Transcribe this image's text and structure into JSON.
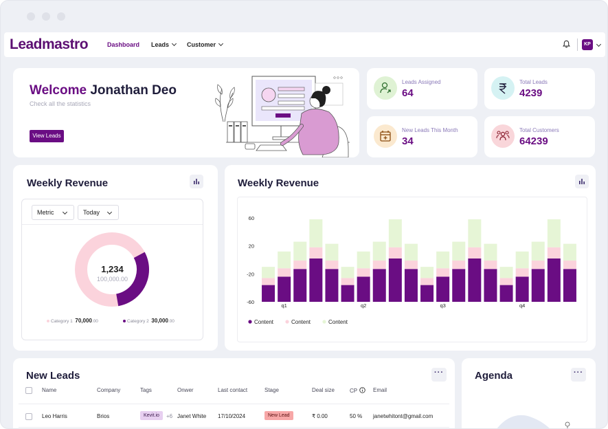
{
  "app": {
    "logo": "Leadmastro"
  },
  "nav": {
    "items": [
      {
        "label": "Dashboard",
        "active": true
      },
      {
        "label": "Leads"
      },
      {
        "label": "Customer"
      }
    ],
    "avatar_initials": "KP"
  },
  "welcome": {
    "title_part1": "Welcome",
    "title_part2": "Jonathan Deo",
    "subtitle": "Check all the statistics",
    "button": "View Leads"
  },
  "stats": [
    {
      "label": "Leads Assigned",
      "value": "64",
      "icon": "user-arrow-icon",
      "color": "#dff2d4"
    },
    {
      "label": "Total Leads",
      "value": "4239",
      "icon": "rupee-icon",
      "color": "#d5f2f3"
    },
    {
      "label": "New Leads This Month",
      "value": "34",
      "icon": "calendar-plus-icon",
      "color": "#fbe9cf"
    },
    {
      "label": "Total Customers",
      "value": "64239",
      "icon": "users-icon",
      "color": "#f9d6da"
    }
  ],
  "donut_card": {
    "title": "Weekly Revenue",
    "metric_select": "Metric",
    "period_select": "Today",
    "center_value": "1,234",
    "center_sub": "100,000.00",
    "legend": [
      {
        "label": "Category 1",
        "value": "70,000",
        "decimals": ".00",
        "color": "#fbd3dc"
      },
      {
        "label": "Category 2",
        "value": "30,000",
        "decimals": ".00",
        "color": "#6a0d83"
      }
    ],
    "colors": {
      "category1": "#fbd3dc",
      "category2": "#6a0d83"
    }
  },
  "chart_data": {
    "type": "bar",
    "stacked": true,
    "title": "Weekly Revenue",
    "y_ticks": [
      "60",
      "20",
      "-20",
      "-60"
    ],
    "ylim": [
      -60,
      60
    ],
    "x_ticks": [
      "q1",
      "q2",
      "q3",
      "q4"
    ],
    "legend_placement": "bottom-left",
    "series": [
      {
        "name": "Content",
        "color": "#6a0d83",
        "values": [
          -36,
          -24,
          -13,
          2,
          -13,
          -36,
          -24,
          -13,
          2,
          -13,
          -36,
          -24,
          -13,
          2,
          -13,
          -36,
          -24,
          -13,
          2,
          -13
        ]
      },
      {
        "name": "Content",
        "color": "#fbd3dc",
        "values": [
          10,
          12,
          12,
          16,
          12,
          10,
          12,
          12,
          16,
          12,
          10,
          12,
          12,
          16,
          12,
          10,
          12,
          12,
          16,
          12
        ]
      },
      {
        "name": "Content",
        "color": "#e6f5d6",
        "values": [
          16,
          24,
          27,
          40,
          24,
          16,
          24,
          27,
          40,
          24,
          16,
          24,
          27,
          40,
          24,
          16,
          24,
          27,
          40,
          24
        ]
      }
    ]
  },
  "leads": {
    "title": "New Leads",
    "columns": [
      "Name",
      "Company",
      "Tags",
      "Onwer",
      "Last contact",
      "Stage",
      "Deal size",
      "CP",
      "Email"
    ],
    "rows": [
      {
        "name": "Leo Harris",
        "company": "Brios",
        "tag": "Kevit.io",
        "tag_more": "+6",
        "owner": "Janet White",
        "last_contact": "17/10/2024",
        "stage": "New Lead",
        "deal_size": "₹ 0.00",
        "cp": "50 %",
        "email": "janetwhitont@gmail.com"
      }
    ]
  },
  "agenda": {
    "title": "Agenda"
  }
}
